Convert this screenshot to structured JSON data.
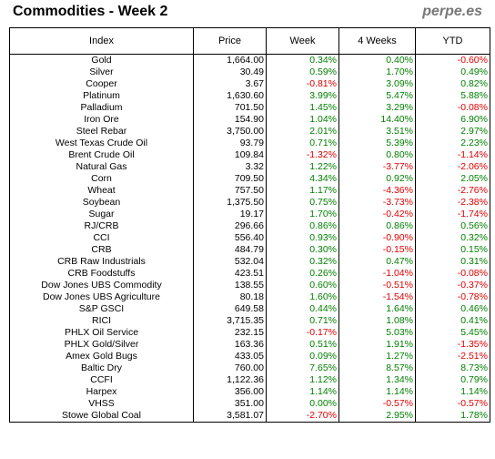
{
  "header": {
    "title": "Commodities - Week 2",
    "brand": "perpe.es"
  },
  "columns": [
    "Index",
    "Price",
    "Week",
    "4 Weeks",
    "YTD"
  ],
  "colors": {
    "positive": "#008000",
    "negative": "#e00000"
  },
  "rows": [
    {
      "name": "Gold",
      "price": "1,664.00",
      "week": "0.34%",
      "weeks4": "0.40%",
      "ytd": "-0.60%"
    },
    {
      "name": "Silver",
      "price": "30.49",
      "week": "0.59%",
      "weeks4": "1.70%",
      "ytd": "0.49%"
    },
    {
      "name": "Cooper",
      "price": "3.67",
      "week": "-0.81%",
      "weeks4": "3.09%",
      "ytd": "0.82%"
    },
    {
      "name": "Platinum",
      "price": "1,630.60",
      "week": "3.99%",
      "weeks4": "5.47%",
      "ytd": "5.88%"
    },
    {
      "name": "Palladium",
      "price": "701.50",
      "week": "1.45%",
      "weeks4": "3.29%",
      "ytd": "-0.08%"
    },
    {
      "name": "Iron Ore",
      "price": "154.90",
      "week": "1.04%",
      "weeks4": "14.40%",
      "ytd": "6.90%"
    },
    {
      "name": "Steel Rebar",
      "price": "3,750.00",
      "week": "2.01%",
      "weeks4": "3.51%",
      "ytd": "2.97%"
    },
    {
      "name": "West Texas Crude Oil",
      "price": "93.79",
      "week": "0.71%",
      "weeks4": "5.39%",
      "ytd": "2.23%"
    },
    {
      "name": "Brent Crude Oil",
      "price": "109.84",
      "week": "-1.32%",
      "weeks4": "0.80%",
      "ytd": "-1.14%"
    },
    {
      "name": "Natural Gas",
      "price": "3.32",
      "week": "1.22%",
      "weeks4": "-3.77%",
      "ytd": "-2.06%"
    },
    {
      "name": "Corn",
      "price": "709.50",
      "week": "4.34%",
      "weeks4": "0.92%",
      "ytd": "2.05%"
    },
    {
      "name": "Wheat",
      "price": "757.50",
      "week": "1.17%",
      "weeks4": "-4.36%",
      "ytd": "-2.76%"
    },
    {
      "name": "Soybean",
      "price": "1,375.50",
      "week": "0.75%",
      "weeks4": "-3.73%",
      "ytd": "-2.38%"
    },
    {
      "name": "Sugar",
      "price": "19.17",
      "week": "1.70%",
      "weeks4": "-0.42%",
      "ytd": "-1.74%"
    },
    {
      "name": "RJ/CRB",
      "price": "296.66",
      "week": "0.86%",
      "weeks4": "0.86%",
      "ytd": "0.56%"
    },
    {
      "name": "CCI",
      "price": "556.40",
      "week": "0.93%",
      "weeks4": "-0.90%",
      "ytd": "0.32%"
    },
    {
      "name": "CRB",
      "price": "484.79",
      "week": "0.30%",
      "weeks4": "-0.15%",
      "ytd": "0.15%"
    },
    {
      "name": "CRB Raw Industrials",
      "price": "532.04",
      "week": "0.32%",
      "weeks4": "0.47%",
      "ytd": "0.31%"
    },
    {
      "name": "CRB Foodstuffs",
      "price": "423.51",
      "week": "0.26%",
      "weeks4": "-1.04%",
      "ytd": "-0.08%"
    },
    {
      "name": "Dow Jones UBS Commodity",
      "price": "138.55",
      "week": "0.60%",
      "weeks4": "-0.51%",
      "ytd": "-0.37%"
    },
    {
      "name": "Dow Jones UBS Agriculture",
      "price": "80.18",
      "week": "1.60%",
      "weeks4": "-1.54%",
      "ytd": "-0.78%"
    },
    {
      "name": "S&P GSCI",
      "price": "649.58",
      "week": "0.44%",
      "weeks4": "1.64%",
      "ytd": "0.46%"
    },
    {
      "name": "RICI",
      "price": "3,715.35",
      "week": "0.71%",
      "weeks4": "1.08%",
      "ytd": "0.41%"
    },
    {
      "name": "PHLX Oil Service",
      "price": "232.15",
      "week": "-0.17%",
      "weeks4": "5.03%",
      "ytd": "5.45%"
    },
    {
      "name": "PHLX Gold/Silver",
      "price": "163.36",
      "week": "0.51%",
      "weeks4": "1.91%",
      "ytd": "-1.35%"
    },
    {
      "name": "Amex Gold Bugs",
      "price": "433.05",
      "week": "0.09%",
      "weeks4": "1.27%",
      "ytd": "-2.51%"
    },
    {
      "name": "Baltic Dry",
      "price": "760.00",
      "week": "7.65%",
      "weeks4": "8.57%",
      "ytd": "8.73%"
    },
    {
      "name": "CCFI",
      "price": "1,122.36",
      "week": "1.12%",
      "weeks4": "1.34%",
      "ytd": "0.79%"
    },
    {
      "name": "Harpex",
      "price": "356.00",
      "week": "1.14%",
      "weeks4": "1.14%",
      "ytd": "1.14%"
    },
    {
      "name": "VHSS",
      "price": "351.00",
      "week": "0.00%",
      "weeks4": "-0.57%",
      "ytd": "-0.57%"
    },
    {
      "name": "Stowe Global Coal",
      "price": "3,581.07",
      "week": "-2.70%",
      "weeks4": "2.95%",
      "ytd": "1.78%"
    }
  ]
}
